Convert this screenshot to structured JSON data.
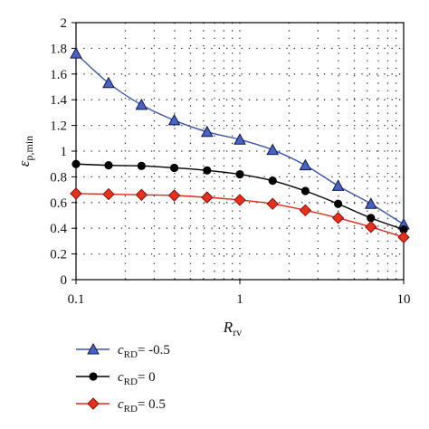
{
  "chart_data": {
    "type": "line",
    "xscale": "log",
    "xlim": [
      0.1,
      10
    ],
    "ylim": [
      0,
      2
    ],
    "xticks": [
      {
        "value": 0.1,
        "label": "0.1"
      },
      {
        "value": 1,
        "label": "1"
      },
      {
        "value": 10,
        "label": "10"
      }
    ],
    "yticks": [
      {
        "value": 0,
        "label": "0"
      },
      {
        "value": 0.2,
        "label": "0.2"
      },
      {
        "value": 0.4,
        "label": "0.4"
      },
      {
        "value": 0.6,
        "label": "0.6"
      },
      {
        "value": 0.8,
        "label": "0.8"
      },
      {
        "value": 1,
        "label": "1"
      },
      {
        "value": 1.2,
        "label": "1.2"
      },
      {
        "value": 1.4,
        "label": "1.4"
      },
      {
        "value": 1.6,
        "label": "1.6"
      },
      {
        "value": 1.8,
        "label": "1.8"
      },
      {
        "value": 2,
        "label": "2"
      }
    ],
    "xlabel": {
      "main": "R",
      "sub": "rv"
    },
    "ylabel": {
      "main": "ε",
      "sub": "p,min"
    },
    "grid": "dotted",
    "legend_position": "bottom",
    "x": [
      0.1,
      0.158,
      0.251,
      0.398,
      0.631,
      1,
      1.585,
      2.512,
      3.981,
      6.31,
      10
    ],
    "series": [
      {
        "name": "c",
        "name_sub": "RD",
        "name_suffix": "= -0.5",
        "marker": "triangle",
        "color": "#2b3d8f",
        "line_color": "#3a55b0",
        "values": [
          1.76,
          1.53,
          1.36,
          1.24,
          1.15,
          1.09,
          1.01,
          0.89,
          0.73,
          0.59,
          0.43
        ]
      },
      {
        "name": "c",
        "name_sub": "RD",
        "name_suffix": "= 0",
        "marker": "circle",
        "color": "#000000",
        "line_color": "#000000",
        "values": [
          0.9,
          0.89,
          0.885,
          0.87,
          0.85,
          0.82,
          0.77,
          0.69,
          0.59,
          0.48,
          0.39
        ]
      },
      {
        "name": "c",
        "name_sub": "RD",
        "name_suffix": "= 0.5",
        "marker": "diamond",
        "color": "#e02a1a",
        "line_color": "#e02a1a",
        "values": [
          0.67,
          0.665,
          0.66,
          0.655,
          0.64,
          0.62,
          0.59,
          0.54,
          0.48,
          0.41,
          0.33
        ]
      }
    ]
  }
}
